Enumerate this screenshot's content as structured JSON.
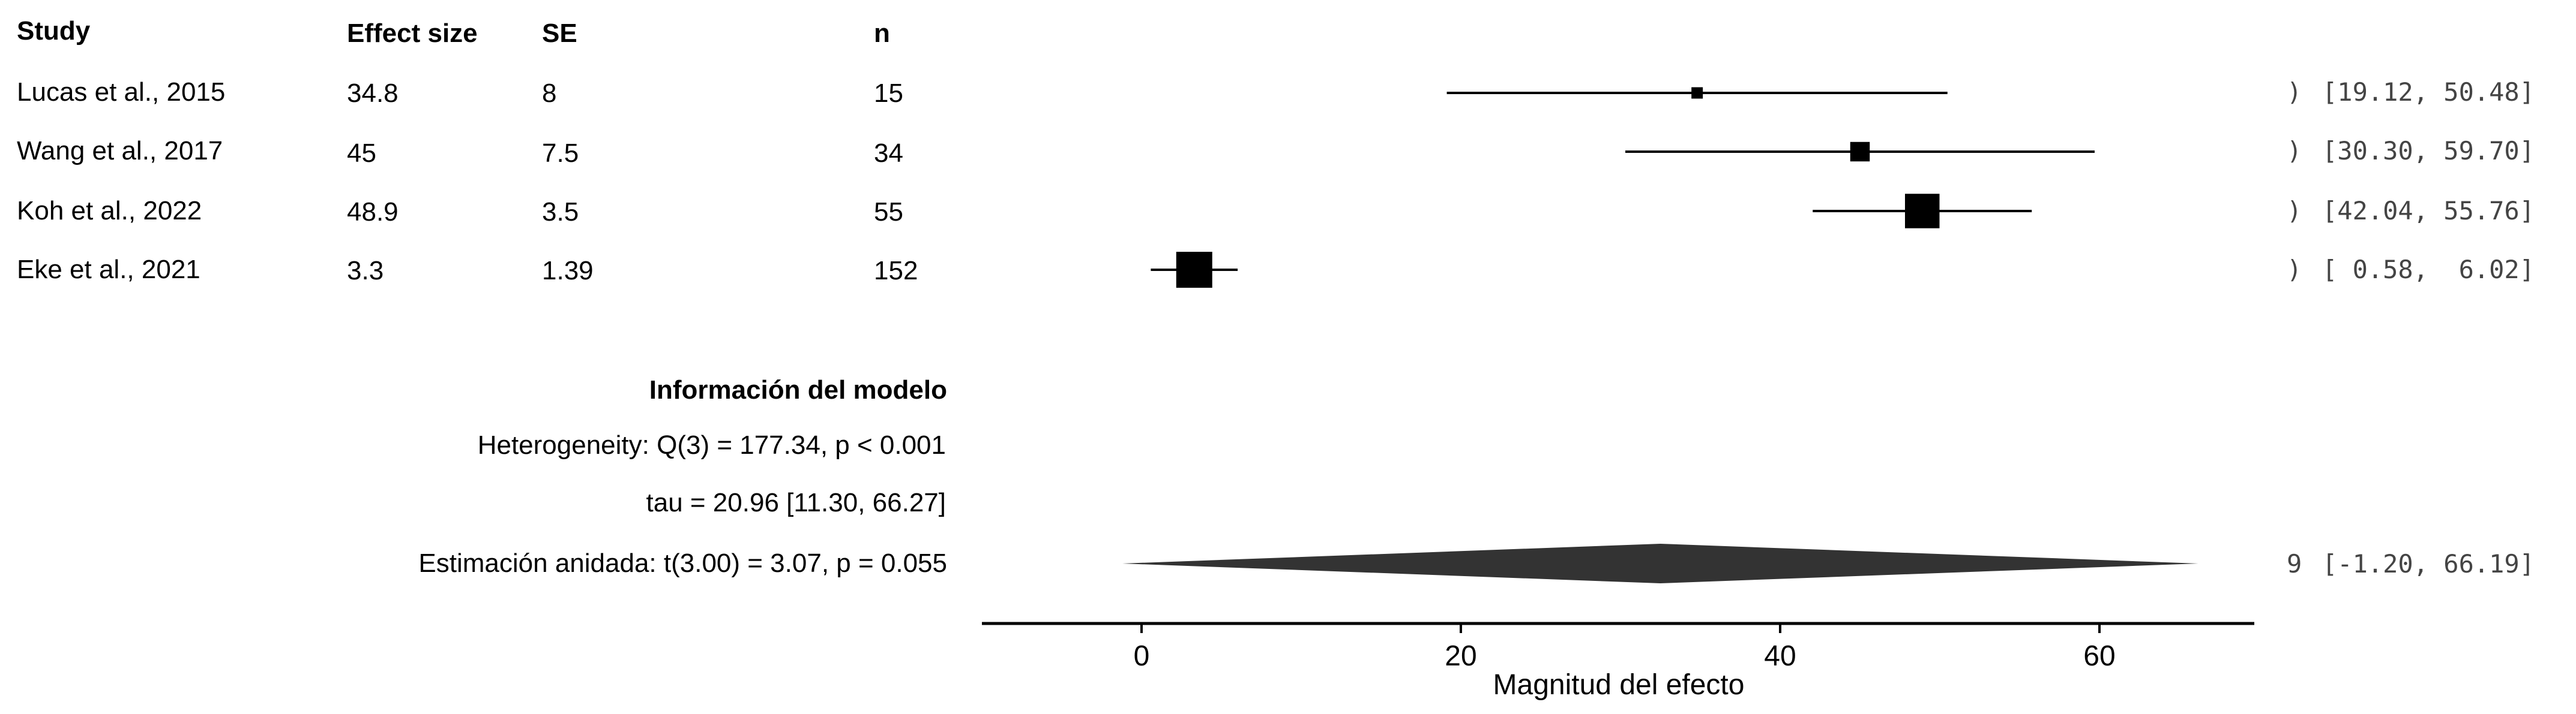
{
  "chart_data": {
    "type": "forest",
    "columns": [
      "Study",
      "Effect size",
      "SE",
      "n"
    ],
    "studies": [
      {
        "study": "Lucas et al., 2015",
        "effect_size": "34.8",
        "se": "8",
        "n": "15",
        "estimate": 34.8,
        "ci_low": 19.12,
        "ci_high": 50.48,
        "ci_text": "[19.12, 50.48]",
        "weight": 0.18
      },
      {
        "study": "Wang et al., 2017",
        "effect_size": "45",
        "se": "7.5",
        "n": "34",
        "estimate": 45.0,
        "ci_low": 30.3,
        "ci_high": 59.7,
        "ci_text": "[30.30, 59.70]",
        "weight": 0.45
      },
      {
        "study": "Koh et al., 2022",
        "effect_size": "48.9",
        "se": "3.5",
        "n": "55",
        "estimate": 48.9,
        "ci_low": 42.04,
        "ci_high": 55.76,
        "ci_text": "[42.04, 55.76]",
        "weight": 0.95
      },
      {
        "study": "Eke et al., 2021",
        "effect_size": "3.3",
        "se": "1.39",
        "n": "152",
        "estimate": 3.3,
        "ci_low": 0.58,
        "ci_high": 6.02,
        "ci_text": "[ 0.58,  6.02]",
        "weight": 1.0
      }
    ],
    "model_info": {
      "heading": "Información del modelo",
      "heterogeneity": "Heterogeneity: Q(3) = 177.34, p < 0.001",
      "tau": "tau = 20.96 [11.30, 66.27]",
      "estimate_label": "Estimación anidada: t(3.00) = 3.07, p = 0.055"
    },
    "pooled": {
      "estimate": 32.5,
      "ci_low": -1.2,
      "ci_high": 66.19,
      "ci_text": "[-1.20, 66.19]"
    },
    "estimate_prefix_fragment": ")",
    "pooled_prefix_fragment": "9",
    "x_axis": {
      "label": "Magnitud del efecto",
      "ticks": [
        0,
        20,
        40,
        60
      ],
      "range": [
        -10,
        70
      ]
    },
    "colors": {
      "marker": "#000000",
      "diamond": "#333333",
      "line": "#000000",
      "ci_text": "#444444"
    }
  }
}
